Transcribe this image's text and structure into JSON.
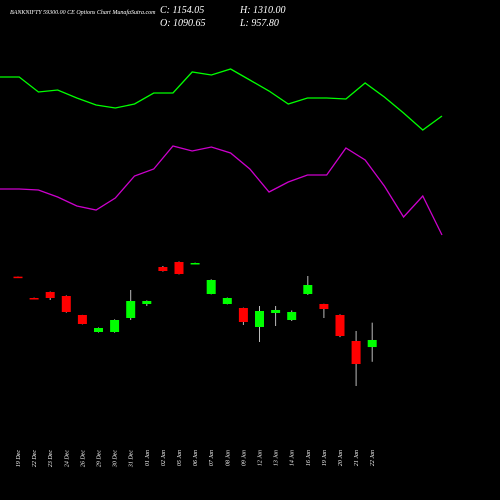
{
  "chart_data": [
    {
      "type": "candlestick",
      "title": "BANKNIFTY 59300.00 CE Options Chart MunafaSutra.com",
      "summary": [
        "C: 1154.05",
        "H: 1310.00",
        "O: 1090.65",
        "L: 957.80"
      ],
      "categories": [
        "19 Dec",
        "22 Dec",
        "23 Dec",
        "24 Dec",
        "26 Dec",
        "29 Dec",
        "30 Dec",
        "31 Dec",
        "01 Jan",
        "02 Jan",
        "05 Jan",
        "06 Jan",
        "07 Jan",
        "08 Jan",
        "09 Jan",
        "12 Jan",
        "13 Jan",
        "14 Jan",
        "16 Jan",
        "19 Jan",
        "20 Jan",
        "21 Jan",
        "22 Jan"
      ],
      "open": [
        1724,
        1532,
        1586,
        1550,
        1379,
        1226,
        1226,
        1352,
        1478,
        1811,
        1856,
        1838,
        1568,
        1478,
        1442,
        1271,
        1397,
        1334,
        1568,
        1478,
        1379,
        1145,
        1090.65
      ],
      "high": [
        1726,
        1535,
        1590,
        1555,
        1380,
        1266,
        1340,
        1604,
        1510,
        1820,
        1860,
        1850,
        1700,
        1536,
        1445,
        1460,
        1460,
        1420,
        1730,
        1480,
        1385,
        1235,
        1310.0
      ],
      "low": [
        1717,
        1520,
        1514,
        1400,
        1295,
        1222,
        1220,
        1334,
        1460,
        1770,
        1745,
        1835,
        1565,
        1475,
        1289,
        1136,
        1280,
        1325,
        1560,
        1352,
        1180,
        740,
        957.8
      ],
      "close": [
        1719,
        1523,
        1532,
        1406,
        1298,
        1262,
        1334,
        1505,
        1505,
        1775,
        1748,
        1847,
        1694,
        1532,
        1316,
        1415,
        1424,
        1406,
        1649,
        1433,
        1190,
        938,
        1154.05
      ],
      "up_color": "#00ff00",
      "down_color": "#ff0000",
      "ylim": [
        254,
        4214
      ]
    },
    {
      "type": "line",
      "series": [
        {
          "color": "#00ff00",
          "values": [
            3521,
            3521,
            3386,
            3404,
            3332,
            3269,
            3242,
            3278,
            3377,
            3377,
            3566,
            3539,
            3593,
            3494,
            3395,
            3278,
            3332,
            3332,
            3323,
            3467,
            3341,
            3197,
            3044,
            3170
          ]
        },
        {
          "color": "#cc00cc",
          "values": [
            2513,
            2513,
            2504,
            2441,
            2360,
            2324,
            2432,
            2630,
            2693,
            2900,
            2855,
            2891,
            2837,
            2693,
            2486,
            2576,
            2639,
            2639,
            2882,
            2774,
            2540,
            2261,
            2450,
            2099
          ]
        }
      ],
      "ylim": [
        254,
        4214
      ]
    }
  ]
}
